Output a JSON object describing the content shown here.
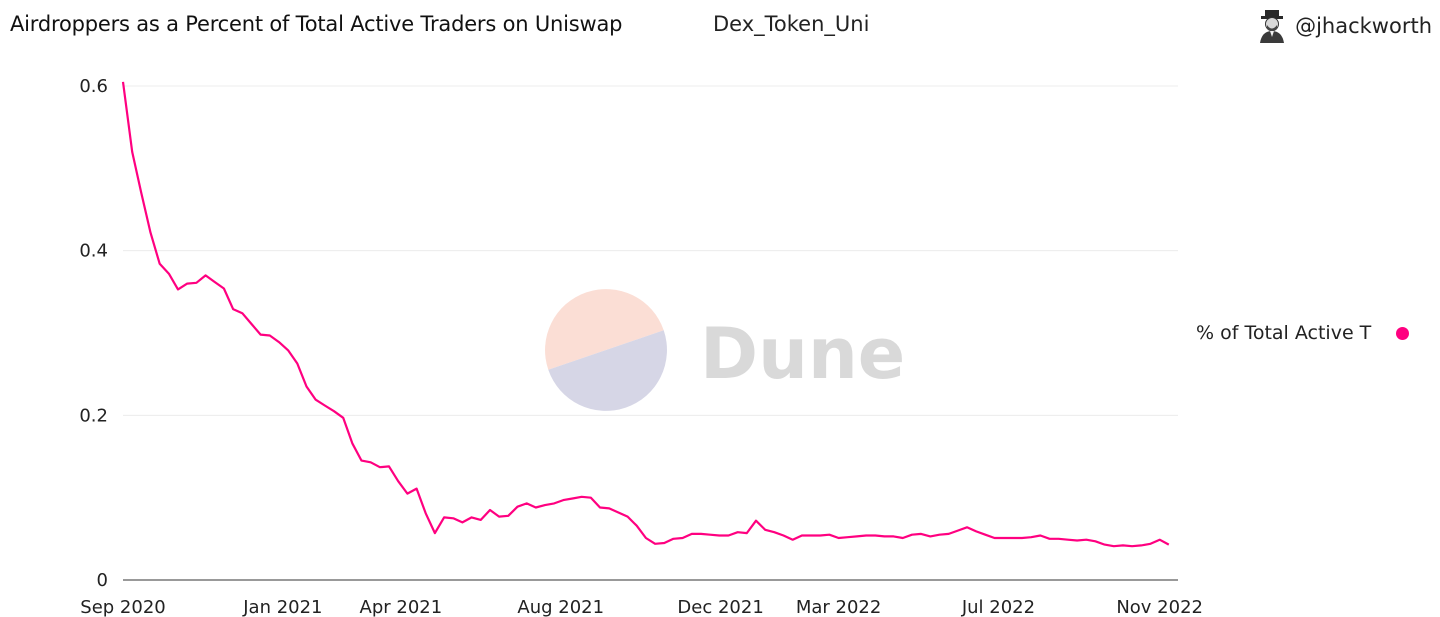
{
  "header": {
    "title": "Airdroppers as a Percent of Total Active Traders on Uniswap",
    "subtitle": "Dex_Token_Uni",
    "author": "@jhackworth",
    "avatar_icon": "person-with-hat-icon"
  },
  "watermark": {
    "text": "Dune",
    "colors": [
      "#fbded5",
      "#d6d6e6"
    ]
  },
  "legend": {
    "label": "% of Total Active T",
    "color": "#ff0080"
  },
  "chart_data": {
    "type": "line",
    "ylim": [
      0,
      0.6
    ],
    "yticks": [
      0,
      0.2,
      0.4,
      0.6
    ],
    "ytick_labels": [
      "0",
      "0.2",
      "0.4",
      "0.6"
    ],
    "xlim": [
      "2020-09-01",
      "2022-11-15"
    ],
    "xtick_dates": [
      "2020-09-01",
      "2021-01-01",
      "2021-04-01",
      "2021-08-01",
      "2021-12-01",
      "2022-03-01",
      "2022-07-01",
      "2022-11-01"
    ],
    "xtick_labels": [
      "Sep 2020",
      "Jan 2021",
      "Apr 2021",
      "Aug 2021",
      "Dec 2021",
      "Mar 2022",
      "Jul 2022",
      "Nov 2022"
    ],
    "grid": true,
    "legend_position": "right",
    "series": [
      {
        "name": "% of Total Active T",
        "color": "#ff0080",
        "x": [
          "2020-09-01",
          "2020-09-08",
          "2020-09-15",
          "2020-09-22",
          "2020-09-29",
          "2020-10-06",
          "2020-10-13",
          "2020-10-20",
          "2020-10-27",
          "2020-11-03",
          "2020-11-10",
          "2020-11-17",
          "2020-11-24",
          "2020-12-01",
          "2020-12-08",
          "2020-12-15",
          "2020-12-22",
          "2020-12-29",
          "2021-01-05",
          "2021-01-12",
          "2021-01-19",
          "2021-01-26",
          "2021-02-02",
          "2021-02-09",
          "2021-02-16",
          "2021-02-23",
          "2021-03-02",
          "2021-03-09",
          "2021-03-16",
          "2021-03-23",
          "2021-03-30",
          "2021-04-06",
          "2021-04-13",
          "2021-04-20",
          "2021-04-27",
          "2021-05-04",
          "2021-05-11",
          "2021-05-18",
          "2021-05-25",
          "2021-06-01",
          "2021-06-08",
          "2021-06-15",
          "2021-06-22",
          "2021-06-29",
          "2021-07-06",
          "2021-07-13",
          "2021-07-20",
          "2021-07-27",
          "2021-08-03",
          "2021-08-10",
          "2021-08-17",
          "2021-08-24",
          "2021-08-31",
          "2021-09-07",
          "2021-09-14",
          "2021-09-21",
          "2021-09-28",
          "2021-10-05",
          "2021-10-12",
          "2021-10-19",
          "2021-10-26",
          "2021-11-02",
          "2021-11-09",
          "2021-11-16",
          "2021-11-23",
          "2021-11-30",
          "2021-12-07",
          "2021-12-14",
          "2021-12-21",
          "2021-12-28",
          "2022-01-04",
          "2022-01-11",
          "2022-01-18",
          "2022-01-25",
          "2022-02-01",
          "2022-02-08",
          "2022-02-15",
          "2022-02-22",
          "2022-03-01",
          "2022-03-08",
          "2022-03-15",
          "2022-03-22",
          "2022-03-29",
          "2022-04-05",
          "2022-04-12",
          "2022-04-19",
          "2022-04-26",
          "2022-05-03",
          "2022-05-10",
          "2022-05-17",
          "2022-05-24",
          "2022-05-31",
          "2022-06-07",
          "2022-06-14",
          "2022-06-21",
          "2022-06-28",
          "2022-07-05",
          "2022-07-12",
          "2022-07-19",
          "2022-07-26",
          "2022-08-02",
          "2022-08-09",
          "2022-08-16",
          "2022-08-23",
          "2022-08-30",
          "2022-09-06",
          "2022-09-13",
          "2022-09-20",
          "2022-09-27",
          "2022-10-04",
          "2022-10-11",
          "2022-10-18",
          "2022-10-25",
          "2022-11-01",
          "2022-11-08"
        ],
        "y": [
          0.605,
          0.52,
          0.47,
          0.422,
          0.384,
          0.372,
          0.353,
          0.36,
          0.361,
          0.37,
          0.362,
          0.354,
          0.329,
          0.324,
          0.311,
          0.298,
          0.297,
          0.289,
          0.279,
          0.263,
          0.235,
          0.219,
          0.212,
          0.205,
          0.197,
          0.166,
          0.145,
          0.143,
          0.137,
          0.138,
          0.12,
          0.105,
          0.111,
          0.081,
          0.057,
          0.076,
          0.075,
          0.07,
          0.076,
          0.073,
          0.085,
          0.077,
          0.078,
          0.089,
          0.093,
          0.088,
          0.091,
          0.093,
          0.097,
          0.099,
          0.101,
          0.1,
          0.088,
          0.087,
          0.082,
          0.077,
          0.066,
          0.051,
          0.044,
          0.045,
          0.05,
          0.051,
          0.056,
          0.056,
          0.055,
          0.054,
          0.054,
          0.058,
          0.057,
          0.072,
          0.061,
          0.058,
          0.054,
          0.049,
          0.054,
          0.054,
          0.054,
          0.055,
          0.051,
          0.052,
          0.053,
          0.054,
          0.054,
          0.053,
          0.053,
          0.051,
          0.055,
          0.056,
          0.053,
          0.055,
          0.056,
          0.06,
          0.064,
          0.059,
          0.055,
          0.051,
          0.051,
          0.051,
          0.051,
          0.052,
          0.054,
          0.05,
          0.05,
          0.049,
          0.048,
          0.049,
          0.047,
          0.043,
          0.041,
          0.042,
          0.041,
          0.042,
          0.044,
          0.049,
          0.043
        ]
      }
    ]
  }
}
